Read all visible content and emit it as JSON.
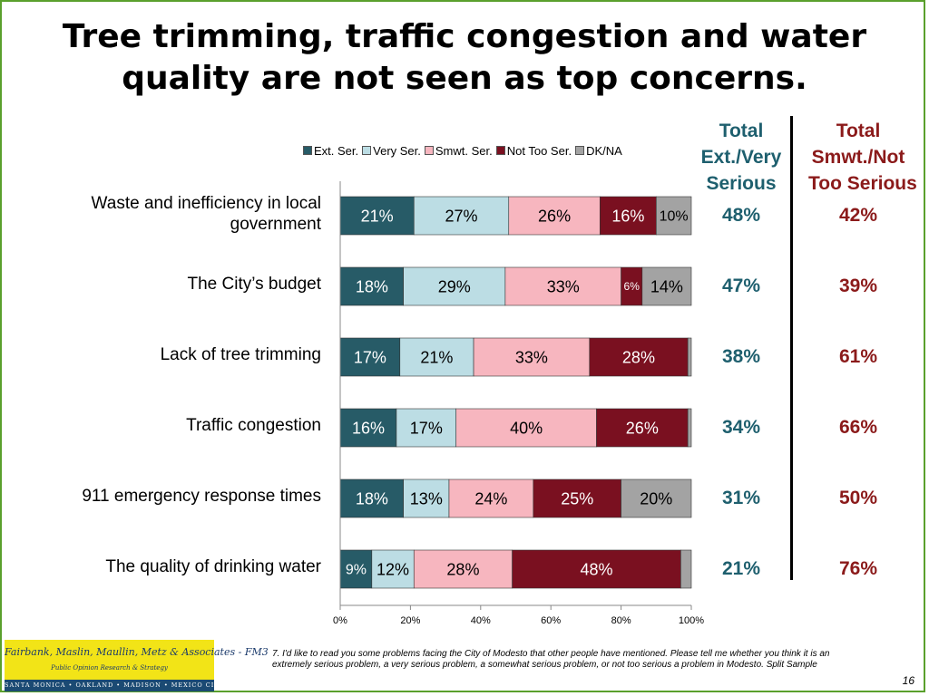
{
  "title": {
    "line1": "Tree trimming, traffic congestion and water",
    "line2": "quality are not seen as top concerns."
  },
  "columns": {
    "serious": {
      "line1": "Total",
      "line2": "Ext./Very",
      "line3": "Serious"
    },
    "not_serious": {
      "line1": "Total",
      "line2": "Smwt./Not",
      "line3": "Too Serious"
    }
  },
  "colors": {
    "serious_text": "#1e5f6e",
    "not_serious_text": "#8b1a1a"
  },
  "chart_data": {
    "type": "bar",
    "orientation": "horizontal",
    "stacked": true,
    "categories": [
      "Waste and inefficiency in local government",
      "The City’s budget",
      "Lack of tree trimming",
      "Traffic congestion",
      "911 emergency response times",
      "The quality of drinking water"
    ],
    "series": [
      {
        "name": "Ext. Ser.",
        "color": "#275b67",
        "label_color": "#ffffff",
        "values": [
          21,
          18,
          17,
          16,
          18,
          9
        ]
      },
      {
        "name": "Very Ser.",
        "color": "#bcdde4",
        "label_color": "#000000",
        "values": [
          27,
          29,
          21,
          17,
          13,
          12
        ]
      },
      {
        "name": "Smwt. Ser.",
        "color": "#f7b6bf",
        "label_color": "#000000",
        "values": [
          26,
          33,
          33,
          40,
          24,
          28
        ]
      },
      {
        "name": "Not Too Ser.",
        "color": "#7a1020",
        "label_color": "#ffffff",
        "values": [
          16,
          6,
          28,
          26,
          25,
          48
        ]
      },
      {
        "name": "DK/NA",
        "color": "#a3a3a3",
        "label_color": "#000000",
        "values": [
          10,
          14,
          1,
          1,
          20,
          3
        ]
      }
    ],
    "data_labels": [
      [
        "21%",
        "27%",
        "26%",
        "16%",
        "10%"
      ],
      [
        "18%",
        "29%",
        "33%",
        "6%",
        "14%"
      ],
      [
        "17%",
        "21%",
        "33%",
        "28%",
        ""
      ],
      [
        "16%",
        "17%",
        "40%",
        "26%",
        ""
      ],
      [
        "18%",
        "13%",
        "24%",
        "25%",
        "20%"
      ],
      [
        "9%",
        "12%",
        "28%",
        "48%",
        ""
      ]
    ],
    "totals_serious": [
      "48%",
      "47%",
      "38%",
      "34%",
      "31%",
      "21%"
    ],
    "totals_not_serious": [
      "42%",
      "39%",
      "61%",
      "66%",
      "50%",
      "76%"
    ],
    "x_ticks": [
      "0%",
      "20%",
      "40%",
      "60%",
      "80%",
      "100%"
    ],
    "xlim": [
      0,
      100
    ],
    "legend_position": "top",
    "grid": false
  },
  "footnote": "7. I'd like to read you some problems facing the City of Modesto that other people have mentioned.  Please tell me whether you think it is an extremely serious problem, a very serious problem, a somewhat serious problem, or not too serious a problem in Modesto. Split Sample",
  "page_number": "16",
  "logo": {
    "name": "Fairbank, Maslin, Maullin, Metz & Associates - FM3",
    "tagline": "Public Opinion Research & Strategy",
    "locations": "SANTA MONICA • OAKLAND • MADISON • MEXICO CITY"
  }
}
